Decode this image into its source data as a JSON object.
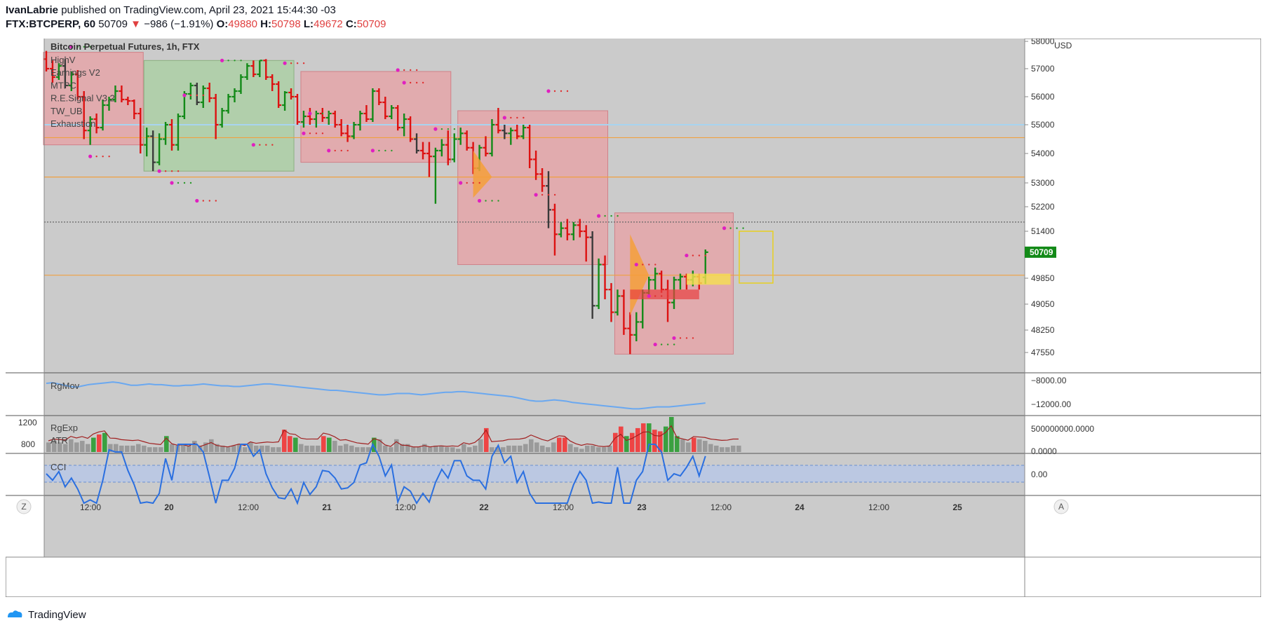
{
  "header": {
    "author": "IvanLabrie",
    "published_text": "published on TradingView.com, April 23, 2021 15:44:30 -03",
    "symbol": "FTX:BTCPERP, 60",
    "last_price": "50709",
    "change_arrow": "▼",
    "change": "−986 (−1.91%)",
    "open_label": "O:",
    "open": "49880",
    "high_label": "H:",
    "high": "50798",
    "low_label": "L:",
    "low": "49672",
    "close_label": "C:",
    "close": "50709"
  },
  "legend": {
    "title": "Bitcoin Perpetual Futures, 1h, FTX",
    "items": [
      "HighV",
      "Earnings V2",
      "MTPC",
      "R.E.Signal V3.2",
      "TW_UB",
      "Exhaustion"
    ]
  },
  "footer": {
    "brand": "TradingView"
  },
  "colors": {
    "up": "#138a18",
    "down": "#dd1111",
    "neutral": "#3a3a3a",
    "box_red": "#e8a0a4",
    "box_green": "#a8d0a0",
    "orange": "#f49f3a",
    "blue_line": "#4a8fe8",
    "cci_band": "#b8c8e6"
  },
  "chart_data": [
    {
      "type": "bar",
      "title": "Bitcoin Perpetual Futures, 1h, FTX",
      "currency": "USD",
      "price_ticks": [
        58000,
        57000,
        56000,
        55000,
        54000,
        53000,
        52200,
        51400,
        50709,
        49850,
        49050,
        48250,
        47550
      ],
      "ylim": [
        47300,
        58200
      ],
      "time_labels": [
        "12:00",
        "20",
        "12:00",
        "21",
        "12:00",
        "22",
        "12:00",
        "23",
        "12:00",
        "24",
        "12:00",
        "25"
      ],
      "last_price": 50709,
      "horizontal_levels": [
        55000,
        54550,
        53200,
        51700,
        49950
      ],
      "ohlc": [
        [
          57350,
          57650,
          56900,
          57000
        ],
        [
          57000,
          57300,
          56500,
          56700
        ],
        [
          56700,
          57200,
          56600,
          57100
        ],
        [
          57100,
          57350,
          56300,
          56400
        ],
        [
          56400,
          56900,
          56200,
          56800
        ],
        [
          56800,
          56950,
          55900,
          56000
        ],
        [
          56000,
          56200,
          54500,
          54800
        ],
        [
          54800,
          55300,
          54300,
          55200
        ],
        [
          55200,
          55400,
          54700,
          54900
        ],
        [
          54900,
          55900,
          54800,
          55700
        ],
        [
          55700,
          56000,
          55500,
          55900
        ],
        [
          55900,
          56400,
          55800,
          56200
        ],
        [
          56200,
          56400,
          55800,
          55900
        ],
        [
          55900,
          56000,
          55700,
          55850
        ],
        [
          55850,
          55900,
          55200,
          55400
        ],
        [
          55400,
          55600,
          54000,
          54300
        ],
        [
          54300,
          54900,
          53900,
          54600
        ],
        [
          54600,
          54800,
          53400,
          53700
        ],
        [
          53700,
          54700,
          53600,
          54500
        ],
        [
          54500,
          55100,
          54300,
          55000
        ],
        [
          55000,
          55200,
          54100,
          54300
        ],
        [
          54300,
          55400,
          54100,
          55300
        ],
        [
          55300,
          56200,
          55200,
          56100
        ],
        [
          56100,
          56500,
          55900,
          56400
        ],
        [
          56400,
          56500,
          55700,
          55800
        ],
        [
          55800,
          56400,
          55600,
          56300
        ],
        [
          56300,
          56500,
          55800,
          55950
        ],
        [
          55950,
          56100,
          54500,
          55000
        ],
        [
          55000,
          55600,
          54900,
          55500
        ],
        [
          55500,
          56100,
          55400,
          56000
        ],
        [
          56000,
          56300,
          55800,
          56200
        ],
        [
          56200,
          56800,
          56100,
          56700
        ],
        [
          56700,
          57200,
          56600,
          57100
        ],
        [
          57100,
          57300,
          56700,
          56800
        ],
        [
          56800,
          57300,
          56700,
          57300
        ],
        [
          57300,
          57350,
          56600,
          56700
        ],
        [
          56700,
          56800,
          56200,
          56450
        ],
        [
          56450,
          56550,
          55600,
          55700
        ],
        [
          55700,
          56200,
          55500,
          56150
        ],
        [
          56150,
          56300,
          55900,
          56000
        ],
        [
          56000,
          56100,
          55000,
          55100
        ],
        [
          55100,
          55500,
          54900,
          55300
        ],
        [
          55300,
          55600,
          55000,
          55200
        ],
        [
          55200,
          55500,
          54900,
          55400
        ],
        [
          55400,
          55600,
          55100,
          55250
        ],
        [
          55250,
          55500,
          55000,
          55400
        ],
        [
          55400,
          55500,
          54900,
          55000
        ],
        [
          55000,
          55200,
          54600,
          54700
        ],
        [
          54700,
          55000,
          54400,
          54600
        ],
        [
          54600,
          55100,
          54500,
          55000
        ],
        [
          55000,
          55500,
          54800,
          55400
        ],
        [
          55400,
          55700,
          55100,
          55200
        ],
        [
          55200,
          56300,
          55100,
          56200
        ],
        [
          56200,
          56300,
          55700,
          55800
        ],
        [
          55800,
          56000,
          55200,
          55300
        ],
        [
          55300,
          55700,
          55200,
          55600
        ],
        [
          55600,
          55700,
          54800,
          54900
        ],
        [
          54900,
          55400,
          54600,
          55200
        ],
        [
          55200,
          55300,
          54400,
          54500
        ],
        [
          54500,
          54700,
          54000,
          54100
        ],
        [
          54100,
          54400,
          53800,
          54000
        ],
        [
          54000,
          54400,
          53200,
          53900
        ],
        [
          53900,
          54200,
          52300,
          54100
        ],
        [
          54100,
          54500,
          53900,
          54300
        ],
        [
          54300,
          54800,
          53600,
          53800
        ],
        [
          53800,
          54700,
          53700,
          54500
        ],
        [
          54500,
          54900,
          54300,
          54700
        ],
        [
          54700,
          54800,
          54100,
          54200
        ],
        [
          54200,
          54400,
          53300,
          53500
        ],
        [
          53500,
          54300,
          53400,
          54200
        ],
        [
          54200,
          54600,
          53900,
          54000
        ],
        [
          54000,
          55200,
          53900,
          55000
        ],
        [
          55000,
          55600,
          54700,
          54800
        ],
        [
          54800,
          55000,
          54500,
          54700
        ],
        [
          54700,
          54900,
          54300,
          54800
        ],
        [
          54800,
          55000,
          54500,
          54600
        ],
        [
          54600,
          55000,
          54500,
          54900
        ],
        [
          54900,
          55000,
          53500,
          53800
        ],
        [
          53800,
          54100,
          53100,
          53300
        ],
        [
          53300,
          53500,
          52700,
          52900
        ],
        [
          52900,
          53400,
          51500,
          52100
        ],
        [
          52100,
          52300,
          50600,
          51300
        ],
        [
          51300,
          51700,
          51200,
          51500
        ],
        [
          51500,
          51800,
          51100,
          51300
        ],
        [
          51300,
          51700,
          51100,
          51600
        ],
        [
          51600,
          51800,
          51200,
          51400
        ],
        [
          51400,
          51600,
          50400,
          51200
        ],
        [
          51200,
          51400,
          48600,
          49000
        ],
        [
          49000,
          50500,
          48900,
          50300
        ],
        [
          50300,
          50600,
          49200,
          49500
        ],
        [
          49500,
          49700,
          48500,
          48800
        ],
        [
          48800,
          49500,
          48700,
          49300
        ],
        [
          49300,
          49500,
          48100,
          48300
        ],
        [
          48300,
          48800,
          47500,
          48100
        ],
        [
          48100,
          48800,
          47900,
          48500
        ],
        [
          48500,
          49500,
          48300,
          49400
        ],
        [
          49400,
          49900,
          49300,
          49800
        ],
        [
          49800,
          50200,
          49500,
          50000
        ],
        [
          50000,
          50100,
          49400,
          49500
        ],
        [
          49500,
          49800,
          48500,
          49100
        ],
        [
          49100,
          49900,
          48900,
          49800
        ],
        [
          49800,
          50000,
          49500,
          49900
        ],
        [
          49900,
          50000,
          49500,
          49800
        ],
        [
          49800,
          50100,
          49600,
          49900
        ],
        [
          49900,
          50000,
          49500,
          49700
        ],
        [
          49880,
          50798,
          49672,
          50709
        ]
      ],
      "boxes": [
        {
          "color": "red",
          "i0": 0,
          "i1": 15,
          "top": 57600,
          "bottom": 54300
        },
        {
          "color": "green",
          "i0": 16,
          "i1": 39,
          "top": 57300,
          "bottom": 53400
        },
        {
          "color": "red",
          "i0": 41,
          "i1": 64,
          "top": 56900,
          "bottom": 53700
        },
        {
          "color": "red",
          "i0": 66,
          "i1": 89,
          "top": 55500,
          "bottom": 50300
        },
        {
          "color": "red",
          "i0": 91,
          "i1": 109,
          "top": 52000,
          "bottom": 47500
        }
      ],
      "panes": [
        {
          "name": "RgMov",
          "ticks": [
            -8000.0,
            -12000.0
          ],
          "tick_labels": [
            "−8000.00",
            "−12000.00"
          ],
          "ylim": [
            -13000,
            -7500
          ]
        },
        {
          "name": "RgExp",
          "secondary_name": "ATR",
          "left_ticks": [
            "1200",
            "800"
          ],
          "right_ticks": [
            "500000000.0000",
            "0.0000"
          ]
        },
        {
          "name": "CCI",
          "ticks": [
            "0.00"
          ]
        }
      ],
      "rgmov": [
        -8600,
        -8500,
        -8700,
        -8900,
        -9100,
        -9200,
        -9000,
        -8800,
        -8700,
        -8600,
        -8500,
        -8400,
        -8500,
        -8700,
        -8900,
        -8900,
        -8800,
        -8700,
        -8800,
        -8800,
        -8900,
        -9000,
        -9000,
        -8900,
        -8900,
        -8800,
        -8700,
        -8800,
        -8900,
        -9000,
        -9000,
        -9100,
        -9100,
        -9000,
        -8900,
        -8800,
        -8700,
        -8700,
        -8800,
        -8900,
        -9000,
        -9100,
        -9200,
        -9300,
        -9400,
        -9500,
        -9600,
        -9700,
        -9700,
        -9800,
        -9900,
        -10000,
        -10100,
        -10200,
        -10300,
        -10400,
        -10400,
        -10300,
        -10200,
        -10200,
        -10200,
        -10300,
        -10400,
        -10300,
        -10200,
        -10100,
        -10000,
        -10000,
        -9900,
        -9900,
        -10000,
        -10100,
        -10200,
        -10300,
        -10400,
        -10500,
        -10600,
        -10700,
        -10900,
        -11100,
        -11300,
        -11400,
        -11400,
        -11300,
        -11200,
        -11300,
        -11400,
        -11600,
        -11700,
        -11800,
        -11900,
        -12000,
        -12100,
        -12200,
        -12300,
        -12400,
        -12500,
        -12600,
        -12600,
        -12500,
        -12400,
        -12300,
        -12300,
        -12300,
        -12200,
        -12100,
        -12000,
        -11900,
        -11800,
        -11700
      ],
      "volume": [
        6,
        7,
        6,
        5,
        8,
        6,
        7,
        5,
        9,
        11,
        12,
        5,
        5,
        4,
        4,
        4,
        5,
        4,
        3,
        3,
        3,
        10,
        5,
        4,
        5,
        4,
        7,
        4,
        6,
        8,
        5,
        4,
        3,
        4,
        5,
        3,
        6,
        4,
        4,
        4,
        3,
        3,
        14,
        10,
        9,
        5,
        4,
        4,
        4,
        10,
        9,
        7,
        4,
        5,
        4,
        3,
        3,
        3,
        9,
        8,
        4,
        3,
        8,
        5,
        5,
        3,
        3,
        5,
        3,
        4,
        4,
        3,
        3,
        2,
        5,
        3,
        4,
        8,
        15,
        3,
        3,
        3,
        4,
        4,
        4,
        5,
        8,
        6,
        4,
        3,
        6,
        9,
        9,
        5,
        3,
        2,
        4,
        4,
        3,
        3,
        4,
        12,
        16,
        10,
        12,
        15,
        18,
        18,
        14,
        13,
        16,
        22,
        10,
        8,
        6,
        9,
        8,
        7,
        5,
        4,
        3,
        3,
        4,
        4
      ]
    }
  ]
}
